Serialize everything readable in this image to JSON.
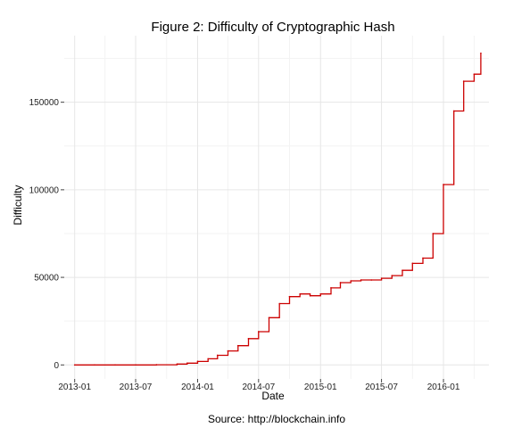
{
  "chart_data": {
    "type": "line",
    "title": "Figure 2: Difficulty of Cryptographic Hash",
    "xlabel": "Date",
    "ylabel": "Difficulty",
    "caption": "Source: http://blockchain.info",
    "xlim": [
      "2012-12-01",
      "2016-05-15"
    ],
    "ylim": [
      -8000,
      188000
    ],
    "x_ticks": [
      "2013-01",
      "2013-07",
      "2014-01",
      "2014-07",
      "2015-01",
      "2015-07",
      "2016-01"
    ],
    "x_tick_labels": [
      "2013-01",
      "2013-07",
      "2014-01",
      "2014-07",
      "2015-01",
      "2015-07",
      "2016-01"
    ],
    "y_ticks": [
      0,
      50000,
      100000,
      150000
    ],
    "y_tick_labels": [
      "0",
      "50000",
      "100000",
      "150000"
    ],
    "grid": true,
    "line_color": "#cc0000",
    "step": true,
    "series": [
      {
        "x": [
          "2013-01-01",
          "2013-03-01",
          "2013-05-01",
          "2013-07-01",
          "2013-09-01",
          "2013-11-01",
          "2013-12-01",
          "2014-01-01",
          "2014-02-01",
          "2014-03-01",
          "2014-04-01",
          "2014-05-01",
          "2014-06-01",
          "2014-07-01",
          "2014-08-01",
          "2014-09-01",
          "2014-10-01",
          "2014-11-01",
          "2014-12-01",
          "2015-01-01",
          "2015-02-01",
          "2015-03-01",
          "2015-04-01",
          "2015-05-01",
          "2015-06-01",
          "2015-07-01",
          "2015-08-01",
          "2015-09-01",
          "2015-10-01",
          "2015-11-01",
          "2015-12-01",
          "2016-01-01",
          "2016-02-01",
          "2016-03-01",
          "2016-04-01",
          "2016-04-21"
        ],
        "y": [
          0,
          0,
          0,
          0,
          100,
          500,
          1000,
          2000,
          3500,
          5500,
          8000,
          11000,
          15000,
          19000,
          27000,
          35000,
          39000,
          40500,
          39500,
          40500,
          44000,
          47000,
          48000,
          48500,
          48500,
          49500,
          51000,
          54000,
          58000,
          61000,
          75000,
          103000,
          145000,
          162000,
          166000,
          178000
        ]
      }
    ]
  }
}
